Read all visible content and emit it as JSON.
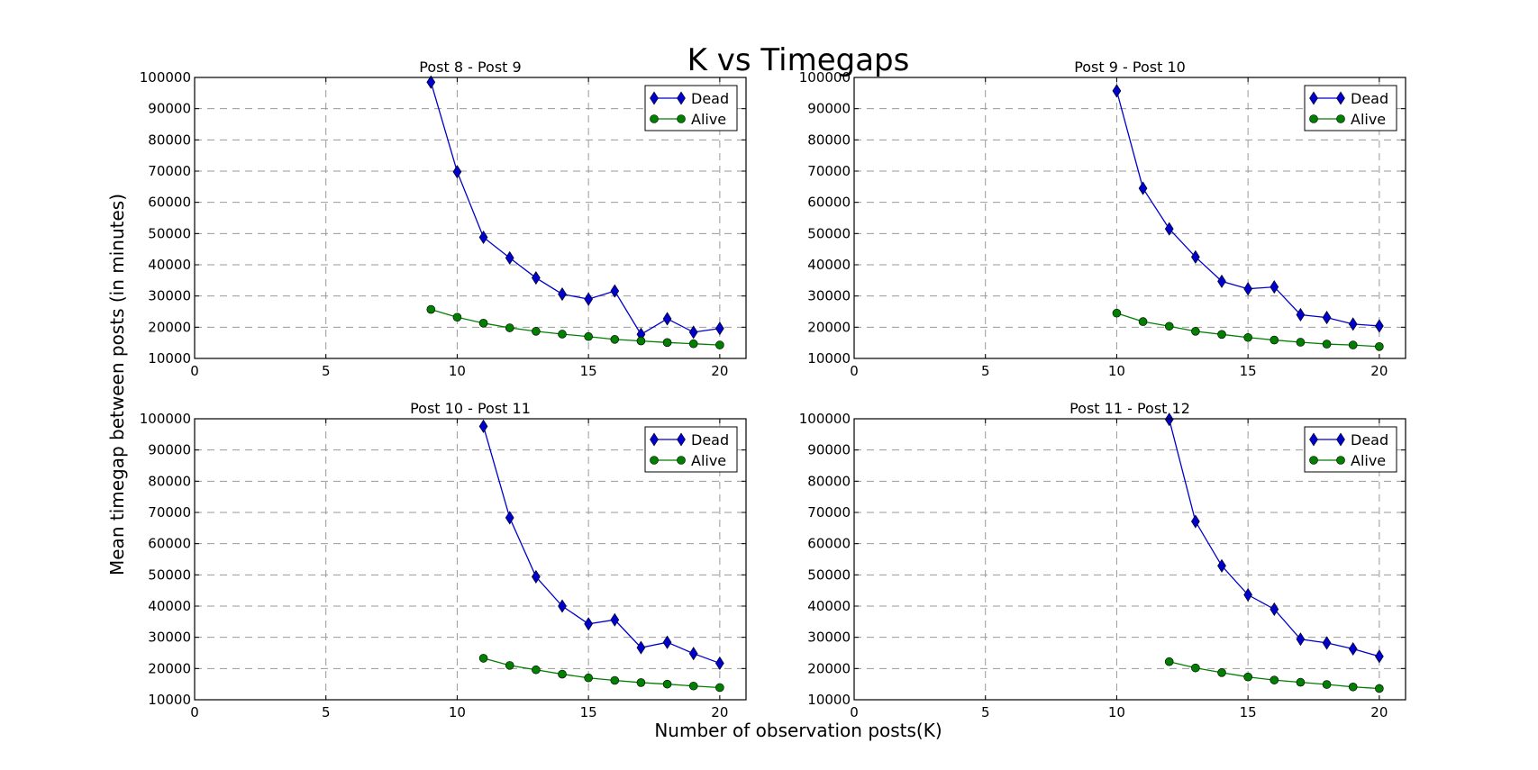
{
  "figure": {
    "title": "K vs Timegaps",
    "xlabel": "Number of observation posts(K)",
    "ylabel": "Mean timegap between posts (in minutes)"
  },
  "colors": {
    "dead": "#0000cc",
    "alive": "#007f00",
    "grid": "#999999"
  },
  "chart_data": [
    {
      "type": "line",
      "title": "Post 8 - Post 9",
      "xlim": [
        0,
        21
      ],
      "ylim": [
        10000,
        100000
      ],
      "xticks": [
        0,
        5,
        10,
        15,
        20
      ],
      "yticks": [
        10000,
        20000,
        30000,
        40000,
        50000,
        60000,
        70000,
        80000,
        90000,
        100000
      ],
      "grid": true,
      "legend_position": "top-right",
      "series": [
        {
          "name": "Dead",
          "marker": "diamond",
          "x": [
            9,
            10,
            11,
            12,
            13,
            14,
            15,
            16,
            17,
            18,
            19,
            20
          ],
          "y": [
            98500,
            69800,
            48800,
            42200,
            35800,
            30600,
            29000,
            31600,
            17700,
            22700,
            18400,
            19600
          ]
        },
        {
          "name": "Alive",
          "marker": "circle",
          "x": [
            9,
            10,
            11,
            12,
            13,
            14,
            15,
            16,
            17,
            18,
            19,
            20
          ],
          "y": [
            25700,
            23200,
            21300,
            19800,
            18700,
            17800,
            17000,
            16100,
            15600,
            15100,
            14700,
            14300
          ]
        }
      ]
    },
    {
      "type": "line",
      "title": "Post 9 - Post 10",
      "xlim": [
        0,
        21
      ],
      "ylim": [
        10000,
        100000
      ],
      "xticks": [
        0,
        5,
        10,
        15,
        20
      ],
      "yticks": [
        10000,
        20000,
        30000,
        40000,
        50000,
        60000,
        70000,
        80000,
        90000,
        100000
      ],
      "grid": true,
      "legend_position": "top-right",
      "series": [
        {
          "name": "Dead",
          "marker": "diamond",
          "x": [
            10,
            11,
            12,
            13,
            14,
            15,
            16,
            17,
            18,
            19,
            20
          ],
          "y": [
            95700,
            64500,
            51500,
            42500,
            34700,
            32300,
            32900,
            24000,
            23100,
            21000,
            20400
          ]
        },
        {
          "name": "Alive",
          "marker": "circle",
          "x": [
            10,
            11,
            12,
            13,
            14,
            15,
            16,
            17,
            18,
            19,
            20
          ],
          "y": [
            24500,
            21800,
            20300,
            18700,
            17700,
            16700,
            15900,
            15200,
            14600,
            14300,
            13800
          ]
        }
      ]
    },
    {
      "type": "line",
      "title": "Post 10 - Post 11",
      "xlim": [
        0,
        21
      ],
      "ylim": [
        10000,
        100000
      ],
      "xticks": [
        0,
        5,
        10,
        15,
        20
      ],
      "yticks": [
        10000,
        20000,
        30000,
        40000,
        50000,
        60000,
        70000,
        80000,
        90000,
        100000
      ],
      "grid": true,
      "legend_position": "top-right",
      "series": [
        {
          "name": "Dead",
          "marker": "diamond",
          "x": [
            11,
            12,
            13,
            14,
            15,
            16,
            17,
            18,
            19,
            20
          ],
          "y": [
            97600,
            68300,
            49400,
            40000,
            34300,
            35600,
            26700,
            28400,
            24800,
            21700
          ]
        },
        {
          "name": "Alive",
          "marker": "circle",
          "x": [
            11,
            12,
            13,
            14,
            15,
            16,
            17,
            18,
            19,
            20
          ],
          "y": [
            23300,
            21000,
            19600,
            18200,
            17000,
            16200,
            15500,
            15000,
            14400,
            13900
          ]
        }
      ]
    },
    {
      "type": "line",
      "title": "Post 11 - Post 12",
      "xlim": [
        0,
        21
      ],
      "ylim": [
        10000,
        100000
      ],
      "xticks": [
        0,
        5,
        10,
        15,
        20
      ],
      "yticks": [
        10000,
        20000,
        30000,
        40000,
        50000,
        60000,
        70000,
        80000,
        90000,
        100000
      ],
      "grid": true,
      "legend_position": "top-right",
      "series": [
        {
          "name": "Dead",
          "marker": "diamond",
          "x": [
            12,
            13,
            14,
            15,
            16,
            17,
            18,
            19,
            20
          ],
          "y": [
            99800,
            67100,
            52900,
            43600,
            39000,
            29400,
            28200,
            26300,
            23900
          ]
        },
        {
          "name": "Alive",
          "marker": "circle",
          "x": [
            12,
            13,
            14,
            15,
            16,
            17,
            18,
            19,
            20
          ],
          "y": [
            22200,
            20200,
            18700,
            17300,
            16300,
            15600,
            14900,
            14100,
            13600
          ]
        }
      ]
    }
  ]
}
